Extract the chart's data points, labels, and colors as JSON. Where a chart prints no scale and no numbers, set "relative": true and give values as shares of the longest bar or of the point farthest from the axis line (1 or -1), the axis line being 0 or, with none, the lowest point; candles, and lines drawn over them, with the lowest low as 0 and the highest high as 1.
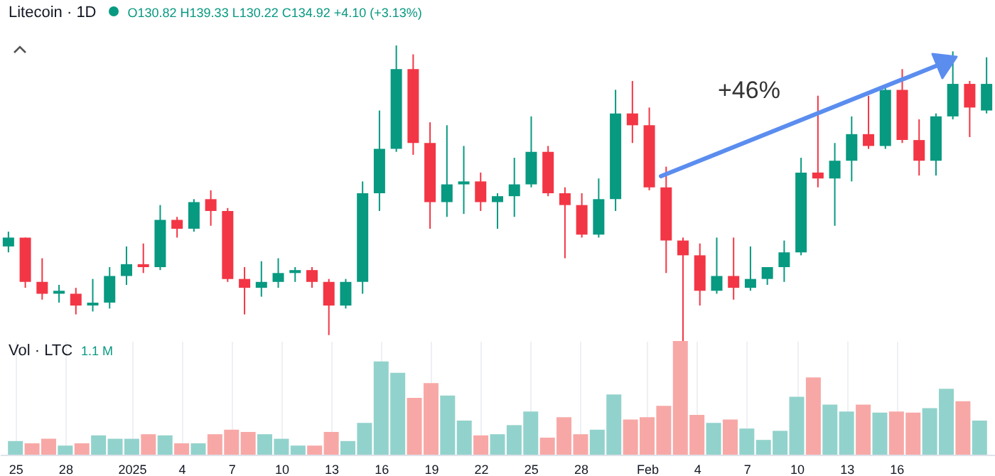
{
  "chart_data": [
    {
      "type": "candlestick",
      "title": "Litecoin · 1D",
      "subtitle": "O130.82 H139.33 L130.22 C134.92 +4.10 (+3.13%)",
      "relative": true,
      "categories": [
        null,
        null,
        null,
        null,
        null,
        null,
        null,
        null,
        null,
        null,
        null,
        null,
        null,
        null,
        null,
        null,
        null,
        null,
        null,
        null,
        null,
        null,
        null,
        null,
        null,
        null,
        null,
        null,
        null,
        null,
        null,
        null,
        null,
        null,
        null,
        null,
        null,
        null,
        null,
        null,
        null,
        null,
        null,
        null,
        null,
        null,
        null,
        null,
        null,
        null,
        null,
        null,
        null,
        null,
        null,
        null,
        null,
        null,
        null
      ],
      "ohlc": [
        [
          0.32,
          0.37,
          0.3,
          0.35
        ],
        [
          0.35,
          0.35,
          0.18,
          0.2
        ],
        [
          0.2,
          0.28,
          0.14,
          0.16
        ],
        [
          0.16,
          0.19,
          0.13,
          0.17
        ],
        [
          0.16,
          0.18,
          0.09,
          0.12
        ],
        [
          0.12,
          0.21,
          0.1,
          0.13
        ],
        [
          0.13,
          0.25,
          0.11,
          0.22
        ],
        [
          0.22,
          0.32,
          0.19,
          0.26
        ],
        [
          0.26,
          0.33,
          0.23,
          0.25
        ],
        [
          0.25,
          0.46,
          0.24,
          0.41
        ],
        [
          0.41,
          0.42,
          0.35,
          0.38
        ],
        [
          0.38,
          0.48,
          0.37,
          0.47
        ],
        [
          0.48,
          0.51,
          0.39,
          0.44
        ],
        [
          0.44,
          0.45,
          0.2,
          0.21
        ],
        [
          0.21,
          0.25,
          0.09,
          0.18
        ],
        [
          0.18,
          0.27,
          0.15,
          0.2
        ],
        [
          0.2,
          0.28,
          0.18,
          0.23
        ],
        [
          0.23,
          0.25,
          0.2,
          0.24
        ],
        [
          0.24,
          0.25,
          0.18,
          0.2
        ],
        [
          0.2,
          0.21,
          0.02,
          0.12
        ],
        [
          0.12,
          0.21,
          0.11,
          0.2
        ],
        [
          0.2,
          0.54,
          0.16,
          0.5
        ],
        [
          0.5,
          0.78,
          0.44,
          0.65
        ],
        [
          0.65,
          1,
          0.64,
          0.92
        ],
        [
          0.92,
          0.97,
          0.63,
          0.67
        ],
        [
          0.67,
          0.74,
          0.38,
          0.47
        ],
        [
          0.47,
          0.73,
          0.42,
          0.53
        ],
        [
          0.53,
          0.66,
          0.43,
          0.54
        ],
        [
          0.54,
          0.57,
          0.44,
          0.47
        ],
        [
          0.47,
          0.5,
          0.38,
          0.49
        ],
        [
          0.49,
          0.62,
          0.42,
          0.53
        ],
        [
          0.53,
          0.76,
          0.52,
          0.64
        ],
        [
          0.64,
          0.66,
          0.49,
          0.5
        ],
        [
          0.5,
          0.52,
          0.28,
          0.46
        ],
        [
          0.46,
          0.5,
          0.35,
          0.36
        ],
        [
          0.36,
          0.55,
          0.35,
          0.48
        ],
        [
          0.48,
          0.85,
          0.44,
          0.77
        ],
        [
          0.77,
          0.88,
          0.67,
          0.73
        ],
        [
          0.73,
          0.79,
          0.51,
          0.52
        ],
        [
          0.52,
          0.59,
          0.23,
          0.34
        ],
        [
          0.34,
          0.35,
          0,
          0.29
        ],
        [
          0.29,
          0.33,
          0.12,
          0.17
        ],
        [
          0.17,
          0.35,
          0.16,
          0.22
        ],
        [
          0.22,
          0.35,
          0.14,
          0.18
        ],
        [
          0.18,
          0.32,
          0.17,
          0.21
        ],
        [
          0.21,
          0.25,
          0.19,
          0.25
        ],
        [
          0.25,
          0.34,
          0.2,
          0.3
        ],
        [
          0.3,
          0.62,
          0.29,
          0.57
        ],
        [
          0.57,
          0.83,
          0.52,
          0.55
        ],
        [
          0.55,
          0.67,
          0.39,
          0.61
        ],
        [
          0.61,
          0.76,
          0.54,
          0.7
        ],
        [
          0.7,
          0.83,
          0.65,
          0.66
        ],
        [
          0.66,
          0.86,
          0.65,
          0.85
        ],
        [
          0.85,
          0.92,
          0.67,
          0.68
        ],
        [
          0.68,
          0.75,
          0.56,
          0.61
        ],
        [
          0.61,
          0.77,
          0.56,
          0.76
        ],
        [
          0.76,
          0.98,
          0.75,
          0.87
        ],
        [
          0.87,
          0.88,
          0.69,
          0.79
        ],
        [
          0.78,
          0.96,
          0.77,
          0.87
        ]
      ],
      "colors": [
        "#089981",
        "#f23645",
        "#f23645",
        "#089981",
        "#f23645",
        "#089981",
        "#089981",
        "#089981",
        "#f23645",
        "#089981",
        "#f23645",
        "#089981",
        "#f23645",
        "#f23645",
        "#f23645",
        "#089981",
        "#089981",
        "#089981",
        "#f23645",
        "#f23645",
        "#089981",
        "#089981",
        "#089981",
        "#089981",
        "#f23645",
        "#f23645",
        "#089981",
        "#089981",
        "#f23645",
        "#089981",
        "#089981",
        "#089981",
        "#f23645",
        "#f23645",
        "#f23645",
        "#089981",
        "#089981",
        "#f23645",
        "#f23645",
        "#f23645",
        "#f23645",
        "#f23645",
        "#089981",
        "#f23645",
        "#089981",
        "#089981",
        "#089981",
        "#089981",
        "#f23645",
        "#089981",
        "#089981",
        "#f23645",
        "#089981",
        "#f23645",
        "#f23645",
        "#089981",
        "#089981",
        "#f23645",
        "#089981"
      ],
      "annotations": [
        "+46%"
      ]
    },
    {
      "type": "bar",
      "title": "Vol · LTC",
      "subtitle": "1.1 M",
      "relative": true,
      "tick_labels": "x",
      "grid": "x",
      "xlim": [
        "2024-12-24T12:00",
        "2025-02-21T12:00"
      ],
      "xticks": [
        {
          "value": "2024-12-25",
          "label": "25"
        },
        {
          "value": "2024-12-28",
          "label": "28"
        },
        {
          "value": "2025-01-01",
          "label": "2025"
        },
        {
          "value": "2025-01-04",
          "label": "4"
        },
        {
          "value": "2025-01-07",
          "label": "7"
        },
        {
          "value": "2025-01-10",
          "label": "10"
        },
        {
          "value": "2025-01-13",
          "label": "13"
        },
        {
          "value": "2025-01-16",
          "label": "16"
        },
        {
          "value": "2025-01-19",
          "label": "19"
        },
        {
          "value": "2025-01-22",
          "label": "22"
        },
        {
          "value": "2025-01-25",
          "label": "25"
        },
        {
          "value": "2025-01-28",
          "label": "28"
        },
        {
          "value": "2025-02-01",
          "label": "Feb"
        },
        {
          "value": "2025-02-04",
          "label": "4"
        },
        {
          "value": "2025-02-07",
          "label": "7"
        },
        {
          "value": "2025-02-10",
          "label": "10"
        },
        {
          "value": "2025-02-13",
          "label": "13"
        },
        {
          "value": "2025-02-16",
          "label": "16"
        }
      ],
      "x": [
        "2024-12-25",
        "2024-12-26",
        "2024-12-27",
        "2024-12-28",
        "2024-12-29",
        "2024-12-30",
        "2024-12-31",
        "2025-01-01",
        "2025-01-02",
        "2025-01-03",
        "2025-01-04",
        "2025-01-05",
        "2025-01-06",
        "2025-01-07",
        "2025-01-08",
        "2025-01-09",
        "2025-01-10",
        "2025-01-11",
        "2025-01-12",
        "2025-01-13",
        "2025-01-14",
        "2025-01-15",
        "2025-01-16",
        "2025-01-17",
        "2025-01-18",
        "2025-01-19",
        "2025-01-20",
        "2025-01-21",
        "2025-01-22",
        "2025-01-23",
        "2025-01-24",
        "2025-01-25",
        "2025-01-26",
        "2025-01-27",
        "2025-01-28",
        "2025-01-29",
        "2025-01-30",
        "2025-01-31",
        "2025-02-01",
        "2025-02-02",
        "2025-02-03",
        "2025-02-04",
        "2025-02-05",
        "2025-02-06",
        "2025-02-07",
        "2025-02-08",
        "2025-02-09",
        "2025-02-10",
        "2025-02-11",
        "2025-02-12",
        "2025-02-13",
        "2025-02-14",
        "2025-02-15",
        "2025-02-16",
        "2025-02-17",
        "2025-02-18",
        "2025-02-19",
        "2025-02-20",
        "2025-02-21"
      ],
      "values": [
        0.12,
        0.1,
        0.14,
        0.08,
        0.1,
        0.17,
        0.14,
        0.14,
        0.18,
        0.17,
        0.1,
        0.1,
        0.18,
        0.22,
        0.2,
        0.18,
        0.14,
        0.08,
        0.08,
        0.2,
        0.12,
        0.28,
        0.82,
        0.72,
        0.5,
        0.63,
        0.52,
        0.3,
        0.17,
        0.18,
        0.26,
        0.38,
        0.15,
        0.33,
        0.18,
        0.22,
        0.53,
        0.31,
        0.33,
        0.43,
        1,
        0.35,
        0.28,
        0.31,
        0.23,
        0.13,
        0.21,
        0.51,
        0.68,
        0.44,
        0.38,
        0.44,
        0.37,
        0.38,
        0.37,
        0.41,
        0.58,
        0.47,
        0.3
      ],
      "colors": [
        "#92d2cc",
        "#f7a8a6",
        "#f7a8a6",
        "#92d2cc",
        "#f7a8a6",
        "#92d2cc",
        "#92d2cc",
        "#92d2cc",
        "#f7a8a6",
        "#92d2cc",
        "#f7a8a6",
        "#92d2cc",
        "#f7a8a6",
        "#f7a8a6",
        "#f7a8a6",
        "#92d2cc",
        "#92d2cc",
        "#92d2cc",
        "#f7a8a6",
        "#f7a8a6",
        "#92d2cc",
        "#92d2cc",
        "#92d2cc",
        "#92d2cc",
        "#f7a8a6",
        "#f7a8a6",
        "#92d2cc",
        "#92d2cc",
        "#f7a8a6",
        "#92d2cc",
        "#92d2cc",
        "#92d2cc",
        "#f7a8a6",
        "#f7a8a6",
        "#f7a8a6",
        "#92d2cc",
        "#92d2cc",
        "#f7a8a6",
        "#f7a8a6",
        "#f7a8a6",
        "#f7a8a6",
        "#f7a8a6",
        "#92d2cc",
        "#f7a8a6",
        "#92d2cc",
        "#92d2cc",
        "#92d2cc",
        "#92d2cc",
        "#f7a8a6",
        "#92d2cc",
        "#92d2cc",
        "#f7a8a6",
        "#92d2cc",
        "#f7a8a6",
        "#f7a8a6",
        "#92d2cc",
        "#92d2cc",
        "#f7a8a6",
        "#92d2cc"
      ]
    }
  ]
}
